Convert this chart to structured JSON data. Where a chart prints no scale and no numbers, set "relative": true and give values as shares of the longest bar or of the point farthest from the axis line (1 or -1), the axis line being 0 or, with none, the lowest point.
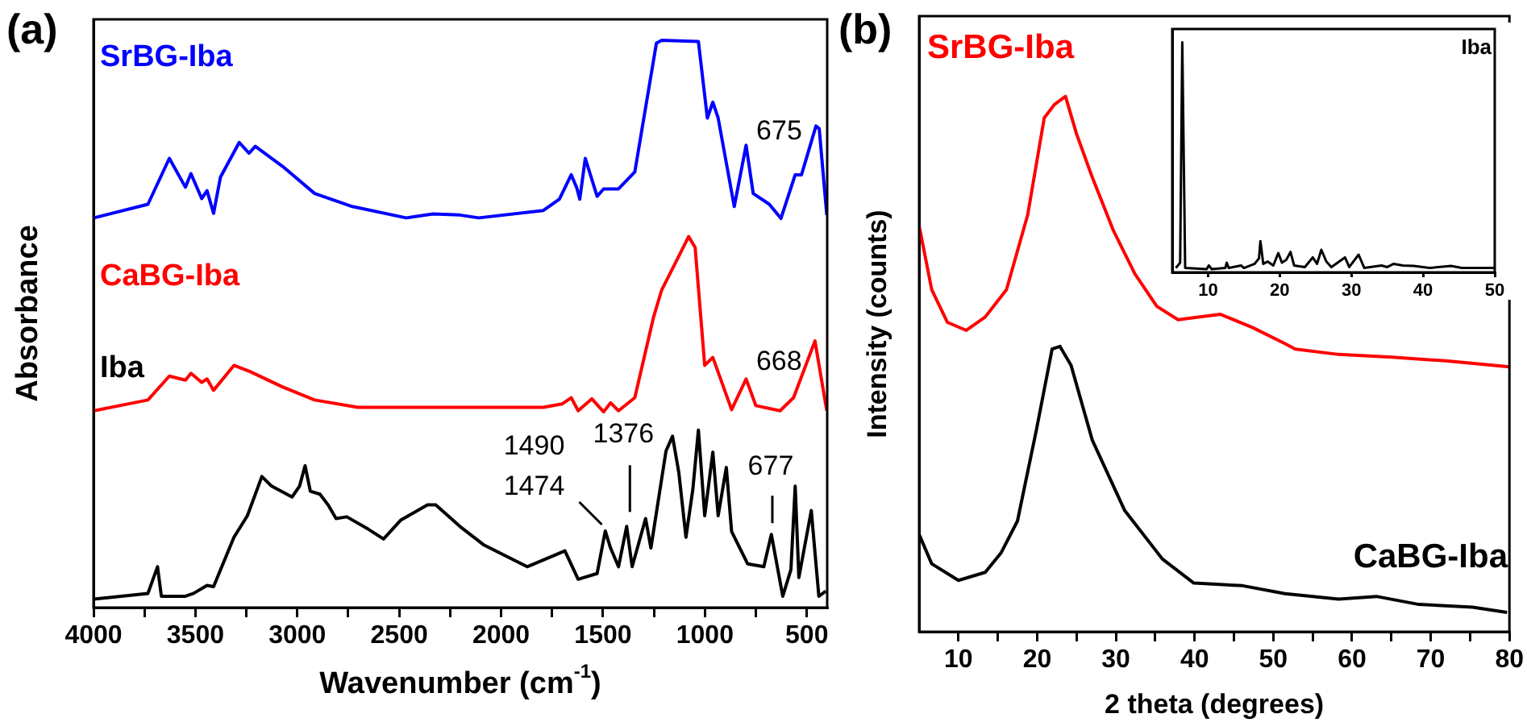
{
  "chart_data": [
    {
      "type": "line",
      "title": "(a)",
      "xlabel": "Wavenumber (cm$^{-1}$)",
      "ylabel": "Absorbance",
      "relative": true,
      "tick_labels": "x",
      "xlim": [
        4000,
        400
      ],
      "xticks": [
        4000,
        {
          "value": 3750,
          "label": null
        },
        3500,
        {
          "value": 3250,
          "label": null
        },
        3000,
        {
          "value": 2750,
          "label": null
        },
        2500,
        {
          "value": 2250,
          "label": null
        },
        2000,
        {
          "value": 1750,
          "label": null
        },
        1500,
        {
          "value": 1250,
          "label": null
        },
        1000,
        {
          "value": 750,
          "label": null
        },
        500
      ],
      "series": [
        {
          "name": "SrBG-Iba",
          "color": "#0000ff",
          "x": [
            3998,
            3733,
            3628,
            3549,
            3522,
            3469,
            3443,
            3411,
            3377,
            3285,
            3237,
            3206,
            3073,
            2915,
            2730,
            2466,
            2334,
            2202,
            2110,
            1793,
            1714,
            1656,
            1629,
            1614,
            1587,
            1529,
            1497,
            1424,
            1344,
            1238,
            1212,
            1032,
            988,
            961,
            935,
            856,
            798,
            763,
            684,
            627,
            557,
            526,
            455,
            439,
            402
          ],
          "values": [
            0.687,
            0.711,
            0.792,
            0.741,
            0.765,
            0.721,
            0.735,
            0.695,
            0.759,
            0.82,
            0.801,
            0.813,
            0.778,
            0.73,
            0.707,
            0.687,
            0.694,
            0.692,
            0.687,
            0.7,
            0.72,
            0.763,
            0.74,
            0.72,
            0.792,
            0.725,
            0.738,
            0.738,
            0.768,
            0.995,
            1,
            0.998,
            0.863,
            0.891,
            0.863,
            0.707,
            0.815,
            0.73,
            0.711,
            0.686,
            0.763,
            0.763,
            0.849,
            0.844,
            0.692
          ]
        },
        {
          "name": "CaBG-Iba",
          "color": "#ff0000",
          "x": [
            3998,
            3733,
            3628,
            3549,
            3522,
            3469,
            3443,
            3411,
            3311,
            3232,
            3073,
            2915,
            2703,
            2202,
            1793,
            1701,
            1656,
            1622,
            1555,
            1497,
            1463,
            1424,
            1344,
            1252,
            1212,
            1133,
            1080,
            1048,
            1001,
            961,
            869,
            798,
            750,
            631,
            565,
            460,
            402
          ],
          "values": [
            0.347,
            0.366,
            0.408,
            0.401,
            0.413,
            0.397,
            0.403,
            0.383,
            0.427,
            0.416,
            0.389,
            0.366,
            0.353,
            0.353,
            0.353,
            0.359,
            0.37,
            0.347,
            0.368,
            0.345,
            0.361,
            0.347,
            0.37,
            0.512,
            0.56,
            0.616,
            0.654,
            0.635,
            0.427,
            0.441,
            0.349,
            0.403,
            0.356,
            0.347,
            0.37,
            0.47,
            0.347
          ]
        },
        {
          "name": "Iba",
          "color": "#000000",
          "x": [
            3998,
            3733,
            3686,
            3667,
            3549,
            3509,
            3443,
            3411,
            3311,
            3245,
            3174,
            3126,
            3026,
            2989,
            2962,
            2936,
            2889,
            2849,
            2810,
            2757,
            2651,
            2577,
            2493,
            2361,
            2321,
            2202,
            2083,
            1872,
            1687,
            1622,
            1529,
            1489,
            1463,
            1424,
            1384,
            1357,
            1291,
            1265,
            1191,
            1159,
            1128,
            1093,
            1059,
            1032,
            1001,
            961,
            935,
            895,
            869,
            790,
            711,
            674,
            618,
            578,
            557,
            539,
            478,
            441,
            407
          ],
          "values": [
            0.015,
            0.025,
            0.072,
            0.02,
            0.02,
            0.025,
            0.039,
            0.037,
            0.124,
            0.162,
            0.231,
            0.214,
            0.195,
            0.214,
            0.25,
            0.205,
            0.2,
            0.181,
            0.157,
            0.16,
            0.138,
            0.121,
            0.154,
            0.181,
            0.181,
            0.143,
            0.11,
            0.072,
            0.1,
            0.05,
            0.06,
            0.135,
            0.105,
            0.072,
            0.143,
            0.072,
            0.157,
            0.105,
            0.276,
            0.302,
            0.238,
            0.124,
            0.209,
            0.313,
            0.162,
            0.274,
            0.162,
            0.247,
            0.134,
            0.077,
            0.072,
            0.129,
            0.02,
            0.067,
            0.214,
            0.053,
            0.171,
            0.02,
            0.029
          ]
        }
      ],
      "annotations": [
        {
          "text": "675",
          "x": 675,
          "y": 0.7
        },
        {
          "text": "668",
          "x": 668,
          "y": 0.35
        },
        {
          "text": "1490",
          "x": 1490,
          "y": 0.135
        },
        {
          "text": "1474",
          "x": 1474,
          "y": 0.135
        },
        {
          "text": "1376",
          "x": 1376,
          "y": 0.143
        },
        {
          "text": "677",
          "x": 677,
          "y": 0.129
        }
      ]
    },
    {
      "type": "line",
      "title": "(b)",
      "xlabel": "2 theta (degrees)",
      "ylabel": "Intensity (counts)",
      "relative": true,
      "tick_labels": "x",
      "xlim": [
        5,
        80
      ],
      "xticks": [
        10,
        {
          "value": 15,
          "label": null
        },
        20,
        {
          "value": 25,
          "label": null
        },
        30,
        {
          "value": 35,
          "label": null
        },
        40,
        {
          "value": 45,
          "label": null
        },
        50,
        {
          "value": 55,
          "label": null
        },
        60,
        {
          "value": 65,
          "label": null
        },
        70,
        {
          "value": 75,
          "label": null
        },
        80
      ],
      "series": [
        {
          "name": "SrBG-Iba",
          "color": "#ff0000",
          "x": [
            5,
            6.6,
            8.6,
            11,
            13.4,
            16.1,
            18.8,
            20.9,
            22.2,
            23.6,
            25,
            27,
            29.7,
            32.4,
            35.2,
            37.9,
            43.3,
            47.4,
            51.5,
            52.8,
            58.3,
            65.1,
            71.9,
            80
          ],
          "values": [
            0.759,
            0.639,
            0.578,
            0.563,
            0.588,
            0.639,
            0.779,
            0.96,
            0.985,
            1,
            0.93,
            0.849,
            0.749,
            0.669,
            0.608,
            0.583,
            0.593,
            0.568,
            0.538,
            0.528,
            0.518,
            0.513,
            0.506,
            0.495
          ]
        },
        {
          "name": "CaBG-Iba",
          "color": "#000000",
          "x": [
            5,
            6.6,
            10,
            13.4,
            15.4,
            17.5,
            19.9,
            21.9,
            22.9,
            24.3,
            27,
            31.1,
            35.9,
            39.9,
            46.1,
            51.5,
            58.3,
            63.1,
            68.5,
            75.3,
            79.7
          ],
          "values": [
            0.182,
            0.127,
            0.096,
            0.111,
            0.147,
            0.207,
            0.377,
            0.528,
            0.533,
            0.498,
            0.358,
            0.227,
            0.136,
            0.091,
            0.086,
            0.071,
            0.061,
            0.066,
            0.051,
            0.046,
            0.036
          ]
        }
      ]
    },
    {
      "type": "line",
      "relative": true,
      "tick_labels": "x",
      "xlim": [
        5,
        50
      ],
      "xticks": [
        10,
        20,
        30,
        40,
        50
      ],
      "series": [
        {
          "name": "Iba",
          "color": "#000000",
          "x": [
            5.5,
            6.1,
            6.4,
            6.8,
            9.8,
            10.1,
            10.5,
            12.4,
            12.6,
            12.9,
            14.6,
            15,
            16.5,
            17.1,
            17.3,
            17.7,
            18.3,
            19.1,
            19.8,
            20.3,
            20.9,
            21.5,
            22,
            23.5,
            24.6,
            25.2,
            25.8,
            26.5,
            27.2,
            29.1,
            29.7,
            31,
            31.8,
            34.2,
            35,
            35.9,
            37.2,
            38.7,
            40.9,
            43.9,
            45.4,
            48.4,
            50
          ],
          "values": [
            0.019,
            0.042,
            1,
            0.019,
            0.014,
            0.03,
            0.014,
            0.019,
            0.042,
            0.019,
            0.03,
            0.019,
            0.037,
            0.061,
            0.136,
            0.037,
            0.047,
            0.03,
            0.084,
            0.042,
            0.054,
            0.089,
            0.03,
            0.023,
            0.065,
            0.037,
            0.098,
            0.047,
            0.023,
            0.065,
            0.023,
            0.077,
            0.019,
            0.03,
            0.023,
            0.037,
            0.03,
            0.028,
            0.019,
            0.028,
            0.019,
            0.019,
            0.019
          ]
        }
      ]
    }
  ]
}
